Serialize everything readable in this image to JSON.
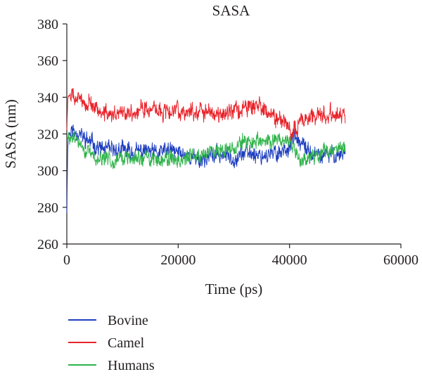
{
  "chart_data": {
    "type": "line",
    "title": "SASA",
    "xlabel": "Time (ps)",
    "ylabel": "SASA (nm)",
    "xlim": [
      0,
      60000
    ],
    "ylim": [
      260,
      380
    ],
    "xticks": [
      0,
      20000,
      40000,
      60000
    ],
    "yticks": [
      260,
      280,
      300,
      320,
      340,
      360,
      380
    ],
    "grid": false,
    "legend_position": "bottom-left",
    "series": [
      {
        "name": "Bovine",
        "color": "#1f3fbf",
        "x": [
          0,
          200,
          1000,
          2000,
          3000,
          4000,
          5000,
          6000,
          8000,
          10000,
          12000,
          14000,
          16000,
          18000,
          20000,
          22000,
          24000,
          26000,
          28000,
          30000,
          32000,
          34000,
          36000,
          38000,
          40000,
          41000,
          42000,
          44000,
          46000,
          48000,
          50000
        ],
        "values": [
          277,
          320,
          322,
          321,
          318,
          316,
          314,
          312,
          311,
          311,
          310,
          311,
          309,
          311,
          310,
          308,
          306,
          308,
          309,
          307,
          310,
          309,
          308,
          310,
          313,
          318,
          314,
          309,
          308,
          309,
          310
        ]
      },
      {
        "name": "Camel",
        "color": "#e8232a",
        "x": [
          0,
          200,
          1000,
          2000,
          3000,
          4000,
          5000,
          6000,
          8000,
          10000,
          12000,
          14000,
          16000,
          18000,
          20000,
          22000,
          24000,
          26000,
          28000,
          30000,
          32000,
          34000,
          36000,
          38000,
          40000,
          41000,
          42000,
          44000,
          46000,
          48000,
          50000
        ],
        "values": [
          322,
          341,
          340,
          339,
          338,
          337,
          335,
          331,
          330,
          332,
          331,
          335,
          332,
          333,
          333,
          332,
          333,
          331,
          332,
          333,
          334,
          335,
          332,
          328,
          322,
          323,
          328,
          330,
          330,
          331,
          330
        ]
      },
      {
        "name": "Humans",
        "color": "#2fb34a",
        "x": [
          0,
          200,
          1000,
          2000,
          3000,
          4000,
          5000,
          6000,
          8000,
          10000,
          12000,
          14000,
          16000,
          18000,
          20000,
          22000,
          24000,
          26000,
          28000,
          30000,
          32000,
          34000,
          36000,
          38000,
          40000,
          41000,
          42000,
          44000,
          46000,
          48000,
          50000
        ],
        "values": [
          318,
          317,
          318,
          316,
          312,
          309,
          307,
          306,
          306,
          307,
          306,
          307,
          306,
          307,
          306,
          307,
          309,
          311,
          313,
          312,
          316,
          316,
          315,
          318,
          315,
          310,
          306,
          308,
          310,
          312,
          312
        ]
      }
    ]
  }
}
